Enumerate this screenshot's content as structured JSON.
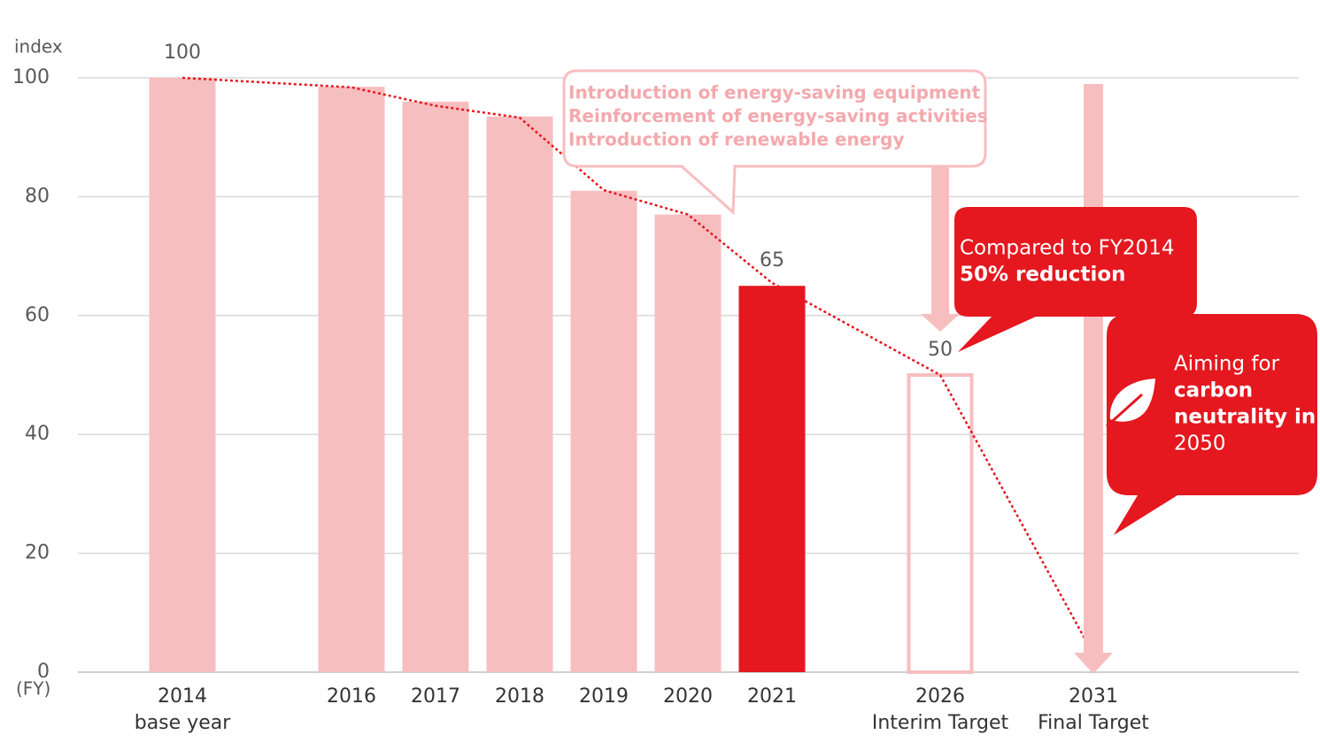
{
  "chart_data": {
    "type": "bar",
    "y_label": "index",
    "x_label": "(FY)",
    "categories": [
      "2014",
      "2016",
      "2017",
      "2018",
      "2019",
      "2020",
      "2021",
      "2026",
      "2031"
    ],
    "category_sublabels": [
      "base year",
      null,
      null,
      null,
      null,
      null,
      null,
      "Interim Target",
      "Final Target"
    ],
    "values": [
      100,
      98.5,
      96,
      93.5,
      81,
      77,
      65,
      50,
      null
    ],
    "value_labels": [
      "100",
      null,
      null,
      null,
      null,
      null,
      "65",
      "50",
      null
    ],
    "colors": [
      "#f7bec0",
      "#f7bec0",
      "#f7bec0",
      "#f7bec0",
      "#f7bec0",
      "#f7bec0",
      "#e5171f",
      "#f7bec0",
      null
    ],
    "bar_styles": [
      "fill",
      "fill",
      "fill",
      "fill",
      "fill",
      "fill",
      "fill",
      "outline",
      null
    ],
    "trend": {
      "type": "line",
      "color": "#e5171f",
      "dashed": true,
      "values": [
        100,
        98.4,
        95.3,
        93.3,
        81.1,
        77,
        65.5,
        50,
        3
      ]
    },
    "ylim": [
      0,
      100
    ],
    "yticks": [
      0,
      20,
      40,
      60,
      80,
      100
    ],
    "grid": true,
    "callouts": [
      {
        "lines": [
          "Introduction of energy-saving equipment",
          "Reinforcement of energy-saving activities",
          "Introduction of renewable energy"
        ],
        "bold": [
          true,
          true,
          true
        ],
        "color": "#f4a9ad"
      },
      {
        "lines": [
          "Compared to FY2014",
          "50% reduction"
        ],
        "bold": [
          false,
          true
        ],
        "color": "#ffffff"
      },
      {
        "lines": [
          "Aiming for",
          "carbon",
          "neutrality in",
          "2050"
        ],
        "bold": [
          false,
          true,
          true,
          false
        ],
        "color": "#ffffff"
      }
    ]
  }
}
